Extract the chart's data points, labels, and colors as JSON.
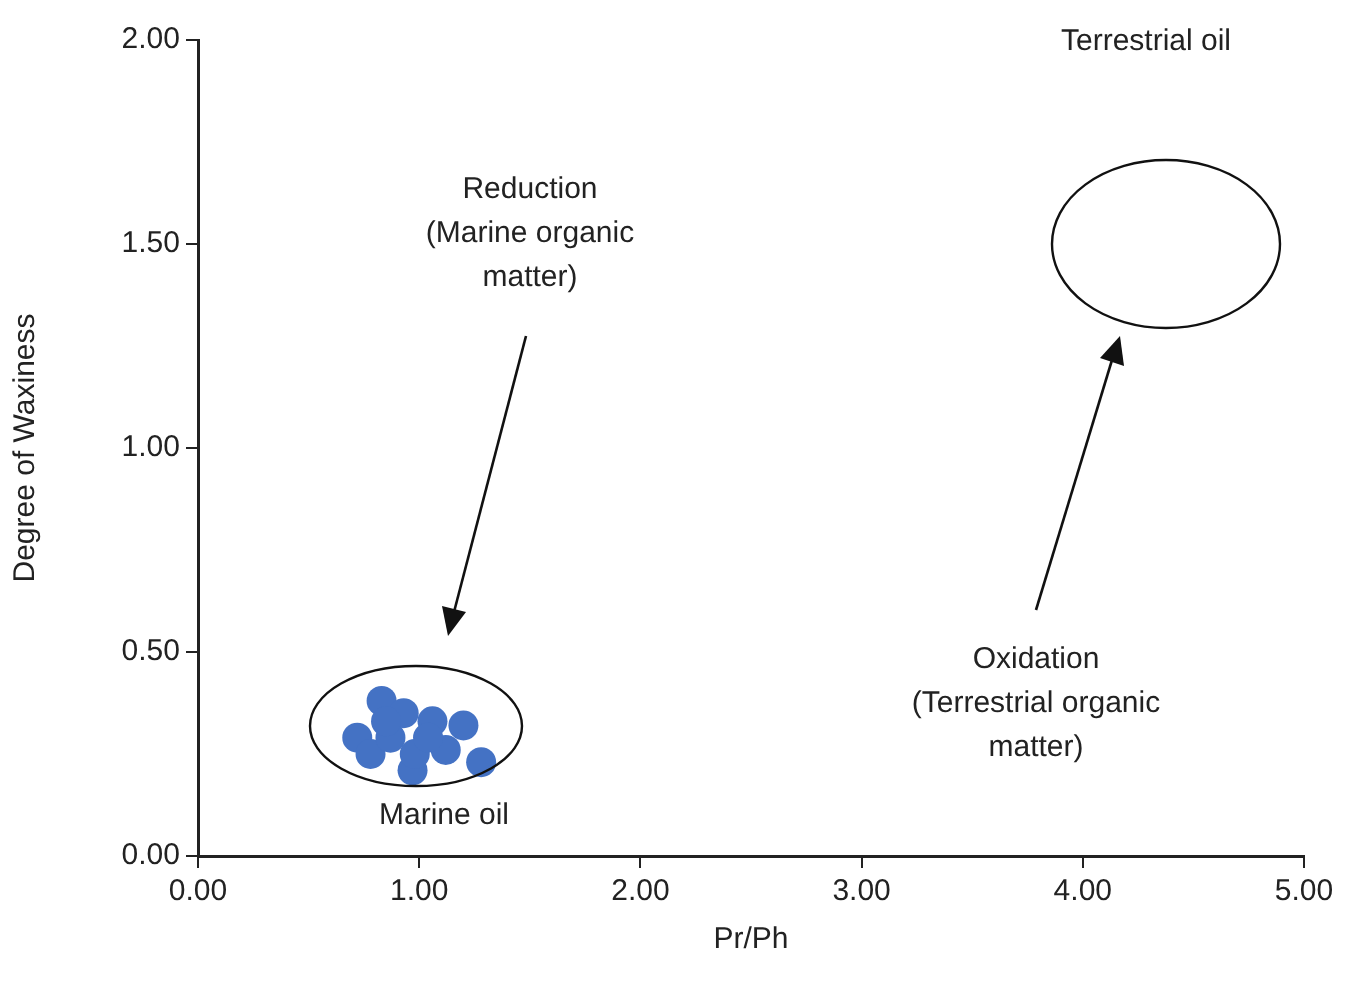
{
  "chart_data": {
    "type": "scatter",
    "xlabel": "Pr/Ph",
    "ylabel": "Degree of Waxiness",
    "x": [
      0.83,
      0.72,
      0.78,
      0.93,
      0.87,
      1.06,
      1.2,
      1.12,
      0.97,
      0.98,
      1.28,
      1.04,
      0.85
    ],
    "values": [
      0.38,
      0.29,
      0.25,
      0.35,
      0.29,
      0.33,
      0.32,
      0.26,
      0.21,
      0.25,
      0.23,
      0.29,
      0.33
    ],
    "color": "#4472c4",
    "marker": "circle",
    "xlim": [
      0,
      5
    ],
    "xticks": [
      {
        "value": 0,
        "label": "0.00"
      },
      {
        "value": 1,
        "label": "1.00"
      },
      {
        "value": 2,
        "label": "2.00"
      },
      {
        "value": 3,
        "label": "3.00"
      },
      {
        "value": 4,
        "label": "4.00"
      },
      {
        "value": 5,
        "label": "5.00"
      }
    ],
    "ylim": [
      0,
      2
    ],
    "yticks": [
      {
        "value": 0,
        "label": "0.00"
      },
      {
        "value": 0.5,
        "label": "0.50"
      },
      {
        "value": 1,
        "label": "1.00"
      },
      {
        "value": 1.5,
        "label": "1.50"
      },
      {
        "value": 2,
        "label": "2.00"
      }
    ],
    "grid": false,
    "legend": false,
    "annotations": [
      "Terrestrial oil",
      "Reduction\n(Marine organic\nmatter)",
      "Marine oil",
      "Oxidation\n(Terrestrial organic\nmatter)"
    ]
  }
}
